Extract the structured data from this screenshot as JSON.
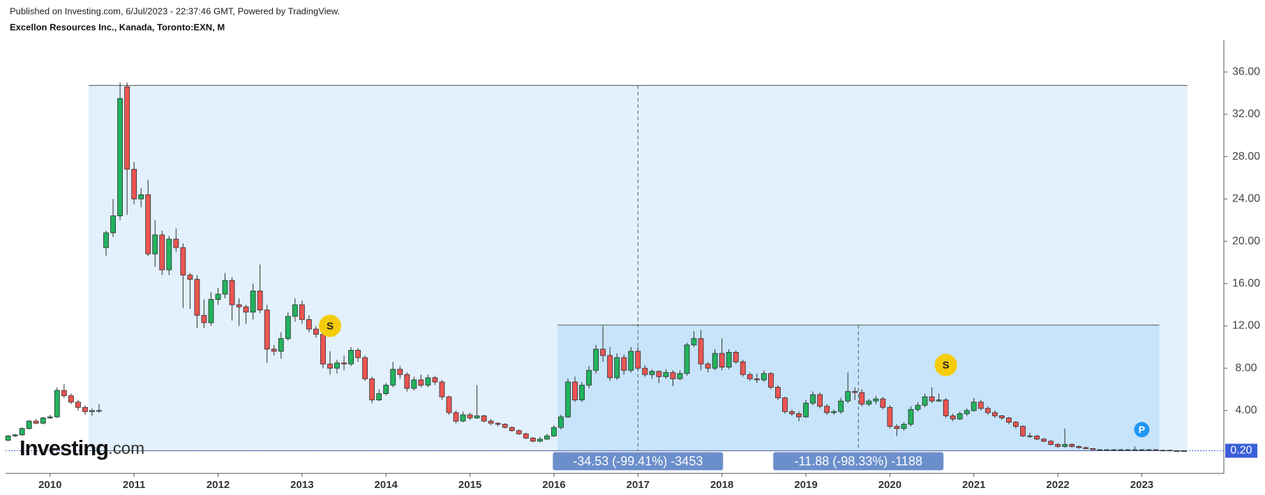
{
  "chart_data": {
    "type": "candlestick",
    "published": "Published on Investing.com, 6/Jul/2023 - 22:37:46 GMT, Powered by TradingView.",
    "title": "Excellon Resources Inc., Kanada, Toronto:EXN, M",
    "logo": {
      "brand": "Investing",
      "suffix": ".com"
    },
    "up_color": "#22b35e",
    "down_color": "#ec5552",
    "ylim": [
      -1.94,
      38.98
    ],
    "yticks": [
      {
        "value": 4,
        "label": "4.00"
      },
      {
        "value": 8,
        "label": "8.00"
      },
      {
        "value": 12,
        "label": "12.00"
      },
      {
        "value": 16,
        "label": "16.00"
      },
      {
        "value": 20,
        "label": "20.00"
      },
      {
        "value": 24,
        "label": "24.00"
      },
      {
        "value": 28,
        "label": "28.00"
      },
      {
        "value": 32,
        "label": "32.00"
      },
      {
        "value": 36,
        "label": "36.00"
      }
    ],
    "last_price": {
      "value": 0.2,
      "label": "0.20"
    },
    "categories": [
      null,
      null,
      null,
      null,
      null,
      null,
      "2010",
      null,
      null,
      null,
      null,
      null,
      null,
      null,
      null,
      null,
      null,
      null,
      "2011",
      null,
      null,
      null,
      null,
      null,
      null,
      null,
      null,
      null,
      null,
      null,
      "2012",
      null,
      null,
      null,
      null,
      null,
      null,
      null,
      null,
      null,
      null,
      null,
      "2013",
      null,
      null,
      null,
      null,
      null,
      null,
      null,
      null,
      null,
      null,
      null,
      "2014",
      null,
      null,
      null,
      null,
      null,
      null,
      null,
      null,
      null,
      null,
      null,
      "2015",
      null,
      null,
      null,
      null,
      null,
      null,
      null,
      null,
      null,
      null,
      null,
      "2016",
      null,
      null,
      null,
      null,
      null,
      null,
      null,
      null,
      null,
      null,
      null,
      "2017",
      null,
      null,
      null,
      null,
      null,
      null,
      null,
      null,
      null,
      null,
      null,
      "2018",
      null,
      null,
      null,
      null,
      null,
      null,
      null,
      null,
      null,
      null,
      null,
      "2019",
      null,
      null,
      null,
      null,
      null,
      null,
      null,
      null,
      null,
      null,
      null,
      "2020",
      null,
      null,
      null,
      null,
      null,
      null,
      null,
      null,
      null,
      null,
      null,
      "2021",
      null,
      null,
      null,
      null,
      null,
      null,
      null,
      null,
      null,
      null,
      null,
      "2022",
      null,
      null,
      null,
      null,
      null,
      null,
      null,
      null,
      null,
      null,
      null,
      "2023",
      null,
      null,
      null,
      null,
      null,
      null
    ],
    "ohlc": [
      [
        1.2,
        1.7,
        1.1,
        1.6
      ],
      [
        1.6,
        1.8,
        1.5,
        1.7
      ],
      [
        1.7,
        2.4,
        1.6,
        2.3
      ],
      [
        2.3,
        3.1,
        2.2,
        3.0
      ],
      [
        3.0,
        3.2,
        2.7,
        2.8
      ],
      [
        2.8,
        3.4,
        2.7,
        3.3
      ],
      [
        3.3,
        3.6,
        3.2,
        3.4
      ],
      [
        3.4,
        6.2,
        3.3,
        5.9
      ],
      [
        5.9,
        6.5,
        5.2,
        5.4
      ],
      [
        5.4,
        5.6,
        4.6,
        4.8
      ],
      [
        4.8,
        5.0,
        4.0,
        4.3
      ],
      [
        4.3,
        4.5,
        3.6,
        3.9
      ],
      [
        3.9,
        4.2,
        3.5,
        4.0
      ],
      [
        4.0,
        4.6,
        3.8,
        4.0
      ],
      [
        19.4,
        21.0,
        18.6,
        20.8
      ],
      [
        20.8,
        24.0,
        20.4,
        22.4
      ],
      [
        22.4,
        35.0,
        22.0,
        33.5
      ],
      [
        34.6,
        35.0,
        22.5,
        26.8
      ],
      [
        26.8,
        27.5,
        23.5,
        24.0
      ],
      [
        24.0,
        25.0,
        23.2,
        24.4
      ],
      [
        24.4,
        25.8,
        18.6,
        18.8
      ],
      [
        18.8,
        22.0,
        17.6,
        20.6
      ],
      [
        20.6,
        21.0,
        16.8,
        17.3
      ],
      [
        17.3,
        20.5,
        16.8,
        20.2
      ],
      [
        20.2,
        21.2,
        19.0,
        19.4
      ],
      [
        19.4,
        19.8,
        13.7,
        16.8
      ],
      [
        16.8,
        17.0,
        13.6,
        16.4
      ],
      [
        16.4,
        16.8,
        11.8,
        13.0
      ],
      [
        13.0,
        14.5,
        11.8,
        12.3
      ],
      [
        12.3,
        15.2,
        12.0,
        14.5
      ],
      [
        14.5,
        15.6,
        14.0,
        15.0
      ],
      [
        15.0,
        17.0,
        14.6,
        16.3
      ],
      [
        16.3,
        16.6,
        12.5,
        14.0
      ],
      [
        14.0,
        14.6,
        12.0,
        13.8
      ],
      [
        13.8,
        14.0,
        12.2,
        13.3
      ],
      [
        13.3,
        16.0,
        12.6,
        15.3
      ],
      [
        15.3,
        17.8,
        13.2,
        13.5
      ],
      [
        13.5,
        14.0,
        8.5,
        9.8
      ],
      [
        9.8,
        10.2,
        9.2,
        9.6
      ],
      [
        9.6,
        11.4,
        8.9,
        10.8
      ],
      [
        10.8,
        13.3,
        10.6,
        12.9
      ],
      [
        12.9,
        14.6,
        12.4,
        14.0
      ],
      [
        14.0,
        14.4,
        12.2,
        12.6
      ],
      [
        12.6,
        13.0,
        11.4,
        11.7
      ],
      [
        11.7,
        12.0,
        10.9,
        11.2
      ],
      [
        11.2,
        11.6,
        8.0,
        8.4
      ],
      [
        8.4,
        9.6,
        7.4,
        8.0
      ],
      [
        8.0,
        8.8,
        7.5,
        8.5
      ],
      [
        8.5,
        9.2,
        7.8,
        8.4
      ],
      [
        8.4,
        10.0,
        8.2,
        9.7
      ],
      [
        9.7,
        9.9,
        8.6,
        9.0
      ],
      [
        9.0,
        9.2,
        6.8,
        7.0
      ],
      [
        7.0,
        7.2,
        4.7,
        5.0
      ],
      [
        5.0,
        6.0,
        4.9,
        5.6
      ],
      [
        5.6,
        6.6,
        5.4,
        6.4
      ],
      [
        6.4,
        8.6,
        6.2,
        7.9
      ],
      [
        7.9,
        8.2,
        7.0,
        7.4
      ],
      [
        7.4,
        7.6,
        5.8,
        6.1
      ],
      [
        6.1,
        7.2,
        5.9,
        6.9
      ],
      [
        6.9,
        7.4,
        6.2,
        6.4
      ],
      [
        6.4,
        7.4,
        6.2,
        7.1
      ],
      [
        7.1,
        7.3,
        6.4,
        6.7
      ],
      [
        6.7,
        6.9,
        5.0,
        5.3
      ],
      [
        5.3,
        5.4,
        3.6,
        3.8
      ],
      [
        3.8,
        4.0,
        2.8,
        3.0
      ],
      [
        3.0,
        3.9,
        2.9,
        3.6
      ],
      [
        3.6,
        3.8,
        3.1,
        3.3
      ],
      [
        3.3,
        6.4,
        3.2,
        3.5
      ],
      [
        3.5,
        3.6,
        2.9,
        3.0
      ],
      [
        3.0,
        3.2,
        2.6,
        2.8
      ],
      [
        2.8,
        2.9,
        2.5,
        2.7
      ],
      [
        2.7,
        2.8,
        2.3,
        2.4
      ],
      [
        2.4,
        2.5,
        2.0,
        2.1
      ],
      [
        2.1,
        2.2,
        1.7,
        1.8
      ],
      [
        1.8,
        1.9,
        1.3,
        1.4
      ],
      [
        1.4,
        1.5,
        1.0,
        1.1
      ],
      [
        1.1,
        1.5,
        1.0,
        1.3
      ],
      [
        1.3,
        1.8,
        1.2,
        1.6
      ],
      [
        1.6,
        2.6,
        1.5,
        2.4
      ],
      [
        2.4,
        3.6,
        2.2,
        3.4
      ],
      [
        3.4,
        7.0,
        3.3,
        6.7
      ],
      [
        6.7,
        7.2,
        4.8,
        5.0
      ],
      [
        5.0,
        6.7,
        4.8,
        6.4
      ],
      [
        6.4,
        8.2,
        6.1,
        7.8
      ],
      [
        7.8,
        10.2,
        7.5,
        9.8
      ],
      [
        9.8,
        12.0,
        8.6,
        9.2
      ],
      [
        9.2,
        10.0,
        6.8,
        7.1
      ],
      [
        7.1,
        9.4,
        6.9,
        9.0
      ],
      [
        9.0,
        9.3,
        7.4,
        7.8
      ],
      [
        7.8,
        10.0,
        7.6,
        9.6
      ],
      [
        9.6,
        10.0,
        7.8,
        8.0
      ],
      [
        8.0,
        8.3,
        7.2,
        7.4
      ],
      [
        7.4,
        7.9,
        7.0,
        7.7
      ],
      [
        7.7,
        7.8,
        6.6,
        7.2
      ],
      [
        7.2,
        7.9,
        7.0,
        7.6
      ],
      [
        7.6,
        7.8,
        6.3,
        7.0
      ],
      [
        7.0,
        7.8,
        6.9,
        7.5
      ],
      [
        7.5,
        10.4,
        7.3,
        10.2
      ],
      [
        10.2,
        11.5,
        10.0,
        10.8
      ],
      [
        10.8,
        11.6,
        7.8,
        8.4
      ],
      [
        8.4,
        8.6,
        7.6,
        8.0
      ],
      [
        8.0,
        9.8,
        7.8,
        9.4
      ],
      [
        9.4,
        10.8,
        7.8,
        8.1
      ],
      [
        8.1,
        9.8,
        7.9,
        9.5
      ],
      [
        9.5,
        9.7,
        8.4,
        8.6
      ],
      [
        8.6,
        8.8,
        7.2,
        7.4
      ],
      [
        7.4,
        7.6,
        6.8,
        7.0
      ],
      [
        7.0,
        7.5,
        6.6,
        6.9
      ],
      [
        6.9,
        7.8,
        6.7,
        7.5
      ],
      [
        7.5,
        7.6,
        6.0,
        6.2
      ],
      [
        6.2,
        6.4,
        5.0,
        5.2
      ],
      [
        5.2,
        5.3,
        3.7,
        3.9
      ],
      [
        3.9,
        4.1,
        3.5,
        3.7
      ],
      [
        3.7,
        3.9,
        3.0,
        3.4
      ],
      [
        3.4,
        5.0,
        3.3,
        4.7
      ],
      [
        4.7,
        5.8,
        4.5,
        5.5
      ],
      [
        5.5,
        5.7,
        4.2,
        4.4
      ],
      [
        4.4,
        4.6,
        3.6,
        3.8
      ],
      [
        3.8,
        4.1,
        3.6,
        3.9
      ],
      [
        3.9,
        5.2,
        3.7,
        4.9
      ],
      [
        4.9,
        7.6,
        4.7,
        5.8
      ],
      [
        5.8,
        6.2,
        5.0,
        5.7
      ],
      [
        5.7,
        6.0,
        4.4,
        4.6
      ],
      [
        4.6,
        5.1,
        4.4,
        4.9
      ],
      [
        4.9,
        5.4,
        4.6,
        5.1
      ],
      [
        5.1,
        5.3,
        4.1,
        4.3
      ],
      [
        4.3,
        4.5,
        2.3,
        2.5
      ],
      [
        2.5,
        2.7,
        1.6,
        2.3
      ],
      [
        2.3,
        2.9,
        2.1,
        2.7
      ],
      [
        2.7,
        4.4,
        2.5,
        4.1
      ],
      [
        4.1,
        4.8,
        3.9,
        4.5
      ],
      [
        4.5,
        5.6,
        4.3,
        5.3
      ],
      [
        5.3,
        6.2,
        4.7,
        4.9
      ],
      [
        4.9,
        5.6,
        4.8,
        5.0
      ],
      [
        5.0,
        5.2,
        3.3,
        3.5
      ],
      [
        3.5,
        3.7,
        3.0,
        3.2
      ],
      [
        3.2,
        3.9,
        3.1,
        3.7
      ],
      [
        3.7,
        4.2,
        3.5,
        4.0
      ],
      [
        4.0,
        5.2,
        3.9,
        4.8
      ],
      [
        4.8,
        5.0,
        4.0,
        4.2
      ],
      [
        4.2,
        4.4,
        3.6,
        3.8
      ],
      [
        3.8,
        4.0,
        3.3,
        3.5
      ],
      [
        3.5,
        3.6,
        3.1,
        3.3
      ],
      [
        3.3,
        3.4,
        2.7,
        2.9
      ],
      [
        2.9,
        3.0,
        2.3,
        2.5
      ],
      [
        2.5,
        2.6,
        1.5,
        1.6
      ],
      [
        1.6,
        1.9,
        1.4,
        1.6
      ],
      [
        1.6,
        1.7,
        1.2,
        1.3
      ],
      [
        1.3,
        1.4,
        1.0,
        1.1
      ],
      [
        1.1,
        1.2,
        0.7,
        0.8
      ],
      [
        0.8,
        0.9,
        0.5,
        0.6
      ],
      [
        0.6,
        2.3,
        0.5,
        0.8
      ],
      [
        0.8,
        0.9,
        0.5,
        0.6
      ],
      [
        0.6,
        0.7,
        0.4,
        0.5
      ],
      [
        0.5,
        0.6,
        0.35,
        0.4
      ],
      [
        0.4,
        0.45,
        0.28,
        0.3
      ],
      [
        0.3,
        0.35,
        0.25,
        0.3
      ],
      [
        0.3,
        0.35,
        0.25,
        0.3
      ],
      [
        0.3,
        0.35,
        0.25,
        0.3
      ],
      [
        0.3,
        0.35,
        0.25,
        0.3
      ],
      [
        0.3,
        0.35,
        0.25,
        0.3
      ],
      [
        0.3,
        0.6,
        0.25,
        0.3
      ],
      [
        0.3,
        0.35,
        0.25,
        0.3
      ],
      [
        0.3,
        0.35,
        0.25,
        0.3
      ],
      [
        0.3,
        0.3,
        0.2,
        0.25
      ],
      [
        0.25,
        0.3,
        0.2,
        0.25
      ],
      [
        0.25,
        0.3,
        0.18,
        0.2
      ],
      [
        0.2,
        0.25,
        0.18,
        0.2
      ],
      [
        0.2,
        0.22,
        0.18,
        0.2
      ]
    ],
    "measures": [
      {
        "label": "-34.53 (-99.41%) -3453",
        "top": 34.73,
        "bottom": 0.2,
        "start": 12,
        "end": 169
      },
      {
        "label": "-11.88 (-98.33%) -1188",
        "top": 12.08,
        "bottom": 0.2,
        "start": 79,
        "end": 165
      }
    ],
    "markers": [
      {
        "label": "S",
        "index": 46,
        "price": 12.0,
        "color": "#f5cc0a"
      },
      {
        "label": "S",
        "index": 134,
        "price": 8.3,
        "color": "#f5cc0a"
      },
      {
        "label": "P",
        "index": 162,
        "price": 2.2,
        "color": "#2196f3"
      }
    ]
  }
}
